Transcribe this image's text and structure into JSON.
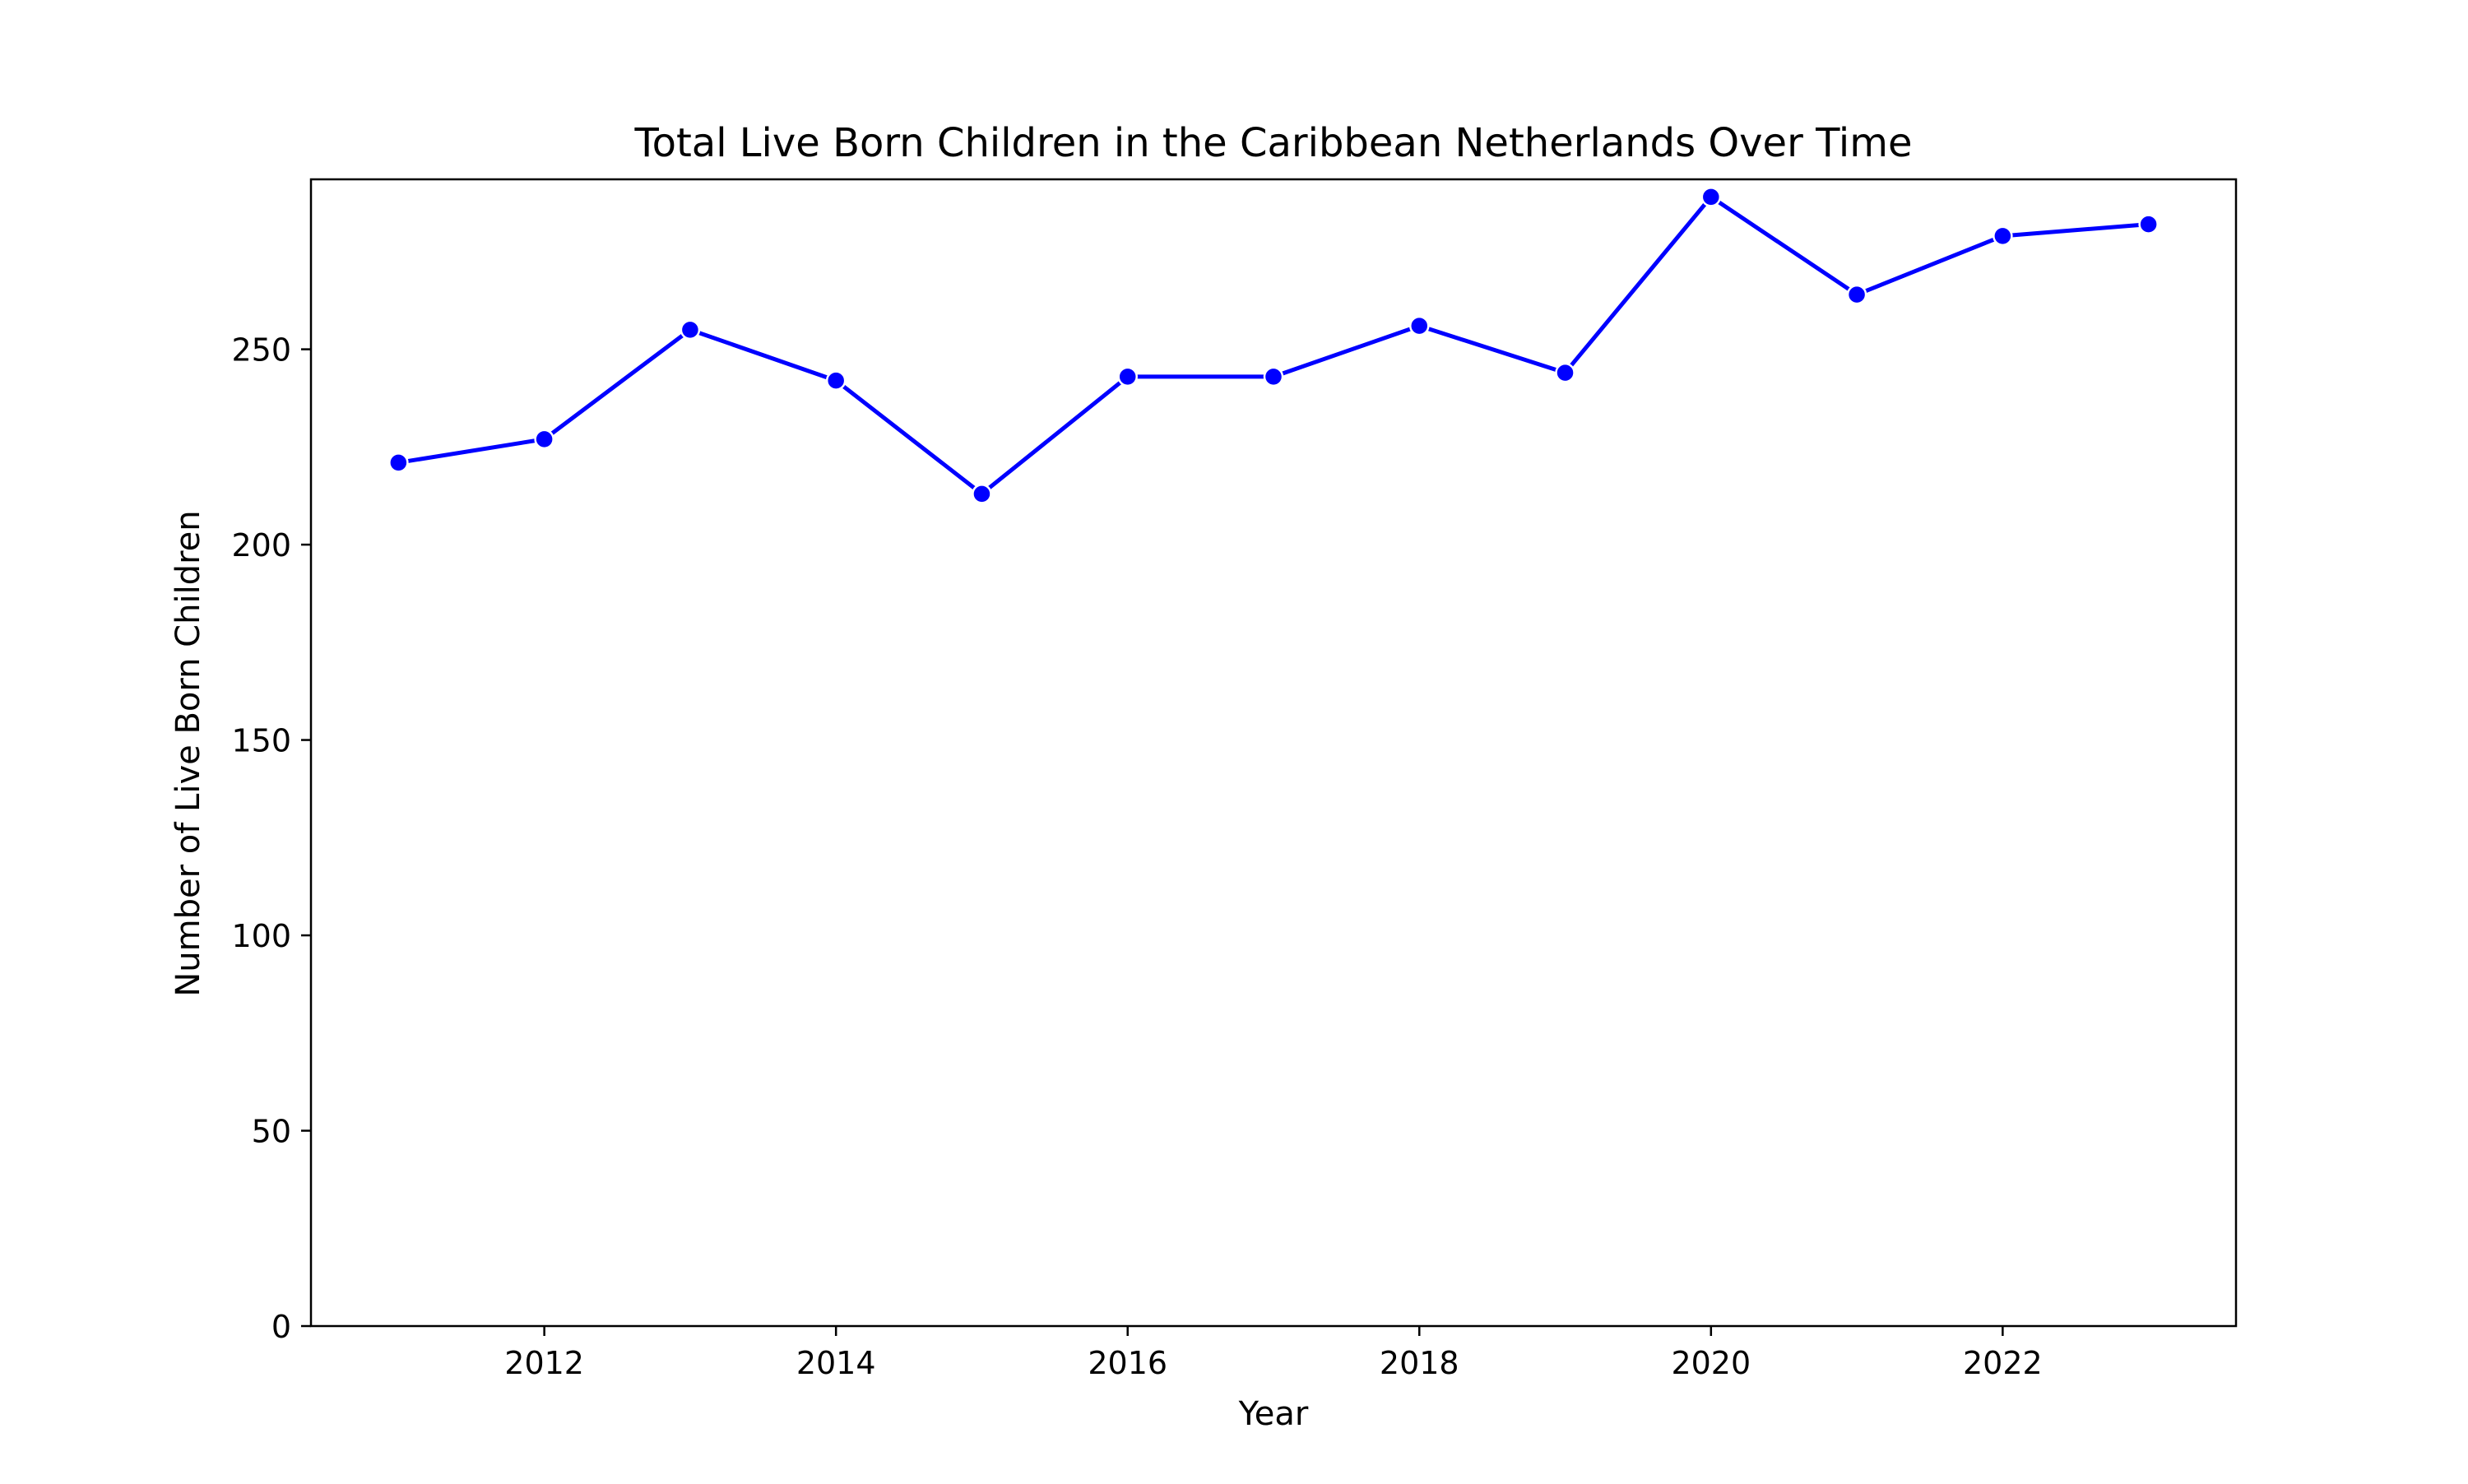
{
  "chart_data": {
    "type": "line",
    "title": "Total Live Born Children in the Caribbean Netherlands Over Time",
    "xlabel": "Year",
    "ylabel": "Number of Live Born Children",
    "x": [
      2011,
      2012,
      2013,
      2014,
      2015,
      2016,
      2017,
      2018,
      2019,
      2020,
      2021,
      2022,
      2023
    ],
    "series": [
      {
        "values": [
          221,
          227,
          255,
          242,
          213,
          243,
          243,
          256,
          244,
          289,
          264,
          279,
          282
        ],
        "color": "#0000ff",
        "marker": "circle"
      }
    ],
    "xlim": [
      2010.4,
      2023.6
    ],
    "ylim": [
      0,
      293.5
    ],
    "x_ticks": [
      "2012",
      "2014",
      "2016",
      "2018",
      "2020",
      "2022"
    ],
    "y_ticks": [
      "0",
      "50",
      "100",
      "150",
      "200",
      "250"
    ],
    "grid": false,
    "legend": "none"
  }
}
